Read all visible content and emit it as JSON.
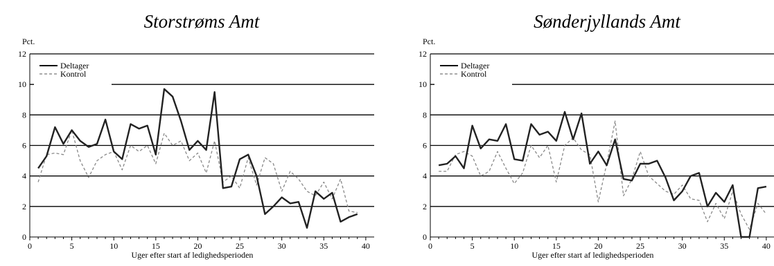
{
  "chart_data": [
    {
      "type": "line",
      "title": "Storstrøms Amt",
      "ylabel": "Pct.",
      "xlabel": "Uger efter start af ledighedsperioden",
      "xlim": [
        0,
        41
      ],
      "ylim": [
        0,
        12
      ],
      "xticks": [
        0,
        5,
        10,
        15,
        20,
        25,
        30,
        35,
        40
      ],
      "yticks": [
        0,
        2,
        4,
        6,
        8,
        10,
        12
      ],
      "grid": "horizontal",
      "legend": "top-left",
      "series": [
        {
          "name": "Deltager",
          "style": "solid",
          "x": [
            1,
            2,
            3,
            4,
            5,
            6,
            7,
            8,
            9,
            10,
            11,
            12,
            13,
            14,
            15,
            16,
            17,
            18,
            19,
            20,
            21,
            22,
            23,
            24,
            25,
            26,
            27,
            28,
            29,
            30,
            31,
            32,
            33,
            34,
            35,
            36,
            37,
            38,
            39
          ],
          "values": [
            4.5,
            5.3,
            7.2,
            6.1,
            7.0,
            6.3,
            5.9,
            6.1,
            7.7,
            5.6,
            5.1,
            7.4,
            7.1,
            7.3,
            5.4,
            9.7,
            9.2,
            7.6,
            5.7,
            6.3,
            5.7,
            9.5,
            3.2,
            3.3,
            5.1,
            5.4,
            4.0,
            1.5,
            2.0,
            2.6,
            2.2,
            2.3,
            0.6,
            3.0,
            2.5,
            2.9,
            1.0,
            1.3,
            1.5
          ]
        },
        {
          "name": "Kontrol",
          "style": "dashed",
          "x": [
            1,
            2,
            3,
            4,
            5,
            6,
            7,
            8,
            9,
            10,
            11,
            12,
            13,
            14,
            15,
            16,
            17,
            18,
            19,
            20,
            21,
            22,
            23,
            24,
            25,
            26,
            27,
            28,
            29,
            30,
            31,
            32,
            33,
            34,
            35,
            36,
            37,
            38,
            39
          ],
          "values": [
            3.6,
            5.4,
            5.5,
            5.4,
            7.0,
            5.0,
            3.9,
            5.0,
            5.4,
            5.6,
            4.4,
            6.0,
            5.6,
            6.0,
            4.8,
            6.8,
            6.0,
            6.3,
            5.0,
            5.5,
            4.2,
            6.3,
            3.6,
            4.0,
            3.2,
            5.2,
            3.4,
            5.2,
            4.8,
            3.0,
            4.3,
            3.8,
            3.0,
            2.7,
            3.6,
            2.5,
            3.8,
            1.7,
            1.6
          ]
        }
      ]
    },
    {
      "type": "line",
      "title": "Sønderjyllands Amt",
      "ylabel": "Pct.",
      "xlabel": "Uger efter start af ledighedsperioden",
      "xlim": [
        0,
        41
      ],
      "ylim": [
        0,
        12
      ],
      "xticks": [
        0,
        5,
        10,
        15,
        20,
        25,
        30,
        35,
        40
      ],
      "yticks": [
        0,
        2,
        4,
        6,
        8,
        10,
        12
      ],
      "grid": "horizontal",
      "legend": "top-left",
      "series": [
        {
          "name": "Deltager",
          "style": "solid",
          "x": [
            1,
            2,
            3,
            4,
            5,
            6,
            7,
            8,
            9,
            10,
            11,
            12,
            13,
            14,
            15,
            16,
            17,
            18,
            19,
            20,
            21,
            22,
            23,
            24,
            25,
            26,
            27,
            28,
            29,
            30,
            31,
            32,
            33,
            34,
            35,
            36,
            37,
            38,
            39,
            40
          ],
          "values": [
            4.7,
            4.8,
            5.3,
            4.5,
            7.3,
            5.8,
            6.4,
            6.3,
            7.4,
            5.1,
            5.0,
            7.4,
            6.7,
            6.9,
            6.3,
            8.2,
            6.4,
            8.1,
            4.8,
            5.6,
            4.7,
            6.4,
            3.8,
            3.7,
            4.8,
            4.8,
            5.0,
            3.9,
            2.4,
            3.0,
            4.0,
            4.2,
            2.0,
            2.9,
            2.3,
            3.4,
            0.0,
            0.0,
            3.2,
            3.3
          ]
        },
        {
          "name": "Kontrol",
          "style": "dashed",
          "x": [
            1,
            2,
            3,
            4,
            5,
            6,
            7,
            8,
            9,
            10,
            11,
            12,
            13,
            14,
            15,
            16,
            17,
            18,
            19,
            20,
            21,
            22,
            23,
            24,
            25,
            26,
            27,
            28,
            29,
            30,
            31,
            32,
            33,
            34,
            35,
            36,
            37,
            38,
            39,
            40
          ],
          "values": [
            4.3,
            4.3,
            5.4,
            5.6,
            5.3,
            4.0,
            4.3,
            5.6,
            4.5,
            3.5,
            4.2,
            6.0,
            5.2,
            6.0,
            3.6,
            6.0,
            6.5,
            5.7,
            5.4,
            2.3,
            4.8,
            7.6,
            2.7,
            3.8,
            5.6,
            4.0,
            3.5,
            3.0,
            2.8,
            3.4,
            2.5,
            2.4,
            1.0,
            2.2,
            1.2,
            3.0,
            1.5,
            0.5,
            2.2,
            1.5
          ]
        }
      ]
    }
  ]
}
